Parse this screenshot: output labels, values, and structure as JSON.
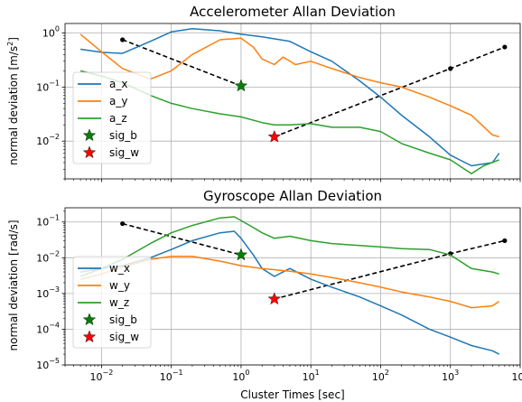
{
  "figure": {
    "xlabel": "Cluster Times [sec]"
  },
  "chart_data": [
    {
      "type": "line",
      "title": "Accelerometer Allan Deviation",
      "ylabel_main": "normal deviation [m/s",
      "ylabel_sup": "2",
      "ylabel_end": "]",
      "xscale": "log",
      "yscale": "log",
      "xlim": [
        0.003,
        10000
      ],
      "ylim": [
        0.002,
        1.5
      ],
      "x_ticks": [
        0.01,
        0.1,
        1,
        10,
        100,
        1000,
        10000
      ],
      "x_tick_labels": [
        {
          "base": "10",
          "exp": "−2"
        },
        {
          "base": "10",
          "exp": "−1"
        },
        {
          "base": "10",
          "exp": "0"
        },
        {
          "base": "10",
          "exp": "1"
        },
        {
          "base": "10",
          "exp": "2"
        },
        {
          "base": "10",
          "exp": "3"
        },
        {
          "base": "10",
          "exp": "4"
        }
      ],
      "y_ticks": [
        0.01,
        0.1,
        1
      ],
      "y_tick_labels": [
        {
          "base": "10",
          "exp": "−2"
        },
        {
          "base": "10",
          "exp": "−1"
        },
        {
          "base": "10",
          "exp": "0"
        }
      ],
      "grid": true,
      "legend_position": "center-left",
      "series": [
        {
          "name": "a_x",
          "color": "#1f77b4",
          "x": [
            0.005,
            0.01,
            0.02,
            0.05,
            0.1,
            0.2,
            0.5,
            1,
            2,
            5,
            10,
            20,
            50,
            100,
            200,
            500,
            1000,
            2000,
            4000,
            5000
          ],
          "y": [
            0.5,
            0.44,
            0.42,
            0.7,
            1.05,
            1.2,
            1.1,
            0.95,
            0.85,
            0.7,
            0.45,
            0.3,
            0.13,
            0.065,
            0.03,
            0.012,
            0.0055,
            0.0035,
            0.004,
            0.006
          ]
        },
        {
          "name": "a_y",
          "color": "#ff7f0e",
          "x": [
            0.005,
            0.01,
            0.02,
            0.05,
            0.1,
            0.2,
            0.5,
            1,
            1.5,
            2,
            3,
            4,
            6,
            10,
            20,
            50,
            100,
            200,
            500,
            1000,
            2000,
            4000,
            5000
          ],
          "y": [
            0.95,
            0.45,
            0.22,
            0.14,
            0.2,
            0.4,
            0.75,
            0.8,
            0.55,
            0.33,
            0.26,
            0.36,
            0.26,
            0.3,
            0.22,
            0.15,
            0.12,
            0.1,
            0.065,
            0.045,
            0.03,
            0.013,
            0.012
          ]
        },
        {
          "name": "a_z",
          "color": "#2ca02c",
          "x": [
            0.005,
            0.01,
            0.02,
            0.05,
            0.1,
            0.2,
            0.5,
            1,
            2,
            3,
            5,
            10,
            20,
            50,
            100,
            200,
            500,
            1000,
            2000,
            3000,
            5000
          ],
          "y": [
            0.2,
            0.16,
            0.12,
            0.07,
            0.05,
            0.04,
            0.032,
            0.028,
            0.022,
            0.02,
            0.02,
            0.021,
            0.018,
            0.018,
            0.015,
            0.009,
            0.006,
            0.0045,
            0.0025,
            0.0035,
            0.0045
          ]
        },
        {
          "name": "sig_b",
          "color": "#008000",
          "marker": "star",
          "x": [
            1
          ],
          "y": [
            0.105
          ]
        },
        {
          "name": "sig_w",
          "color": "#ff0000",
          "marker": "star",
          "x": [
            3
          ],
          "y": [
            0.012
          ]
        }
      ],
      "fit_lines": [
        {
          "x": [
            0.02,
            1
          ],
          "y": [
            0.75,
            0.105
          ]
        },
        {
          "x": [
            3,
            1000,
            6000
          ],
          "y": [
            0.012,
            0.22,
            0.55
          ]
        }
      ]
    },
    {
      "type": "line",
      "title": "Gyroscope Allan Deviation",
      "ylabel_main": "normal deviation [rad/s]",
      "ylabel_sup": "",
      "ylabel_end": "",
      "xscale": "log",
      "yscale": "log",
      "xlim": [
        0.003,
        10000
      ],
      "ylim": [
        1e-05,
        0.25
      ],
      "x_ticks": [
        0.01,
        0.1,
        1,
        10,
        100,
        1000,
        10000
      ],
      "x_tick_labels": [
        {
          "base": "10",
          "exp": "−2"
        },
        {
          "base": "10",
          "exp": "−1"
        },
        {
          "base": "10",
          "exp": "0"
        },
        {
          "base": "10",
          "exp": "1"
        },
        {
          "base": "10",
          "exp": "2"
        },
        {
          "base": "10",
          "exp": "3"
        },
        {
          "base": "10",
          "exp": "4"
        }
      ],
      "y_ticks": [
        1e-05,
        0.0001,
        0.001,
        0.01,
        0.1
      ],
      "y_tick_labels": [
        {
          "base": "10",
          "exp": "−5"
        },
        {
          "base": "10",
          "exp": "−4"
        },
        {
          "base": "10",
          "exp": "−3"
        },
        {
          "base": "10",
          "exp": "−2"
        },
        {
          "base": "10",
          "exp": "−1"
        }
      ],
      "grid": true,
      "legend_position": "lower-left",
      "series": [
        {
          "name": "w_x",
          "color": "#1f77b4",
          "x": [
            0.005,
            0.01,
            0.02,
            0.05,
            0.1,
            0.2,
            0.5,
            0.8,
            1,
            1.5,
            2,
            3,
            5,
            10,
            20,
            50,
            100,
            200,
            500,
            1000,
            2000,
            4000,
            5000
          ],
          "y": [
            0.004,
            0.005,
            0.006,
            0.01,
            0.017,
            0.03,
            0.05,
            0.055,
            0.035,
            0.012,
            0.005,
            0.003,
            0.005,
            0.0025,
            0.0015,
            0.0008,
            0.00045,
            0.00025,
            0.0001,
            6e-05,
            3.5e-05,
            2.5e-05,
            2e-05
          ]
        },
        {
          "name": "w_y",
          "color": "#ff7f0e",
          "x": [
            0.005,
            0.01,
            0.02,
            0.05,
            0.1,
            0.2,
            0.5,
            1,
            2,
            5,
            10,
            20,
            50,
            100,
            200,
            500,
            1000,
            2000,
            4000,
            5000
          ],
          "y": [
            0.0025,
            0.0035,
            0.0055,
            0.009,
            0.011,
            0.011,
            0.008,
            0.006,
            0.005,
            0.0042,
            0.0035,
            0.0028,
            0.002,
            0.0015,
            0.0011,
            0.0008,
            0.0006,
            0.0004,
            0.00045,
            0.0006
          ]
        },
        {
          "name": "w_z",
          "color": "#2ca02c",
          "x": [
            0.005,
            0.01,
            0.02,
            0.05,
            0.1,
            0.2,
            0.5,
            0.8,
            1,
            1.5,
            2,
            3,
            5,
            10,
            20,
            50,
            100,
            200,
            500,
            1000,
            2000,
            4000,
            5000
          ],
          "y": [
            0.003,
            0.005,
            0.009,
            0.025,
            0.05,
            0.08,
            0.13,
            0.14,
            0.11,
            0.07,
            0.05,
            0.035,
            0.04,
            0.03,
            0.025,
            0.022,
            0.02,
            0.018,
            0.017,
            0.012,
            0.005,
            0.004,
            0.0035
          ]
        },
        {
          "name": "sig_b",
          "color": "#008000",
          "marker": "star",
          "x": [
            1
          ],
          "y": [
            0.012
          ]
        },
        {
          "name": "sig_w",
          "color": "#ff0000",
          "marker": "star",
          "x": [
            3
          ],
          "y": [
            0.0007
          ]
        }
      ],
      "fit_lines": [
        {
          "x": [
            0.02,
            1
          ],
          "y": [
            0.09,
            0.012
          ]
        },
        {
          "x": [
            3,
            1000,
            6000
          ],
          "y": [
            0.0007,
            0.013,
            0.03
          ]
        }
      ]
    }
  ]
}
